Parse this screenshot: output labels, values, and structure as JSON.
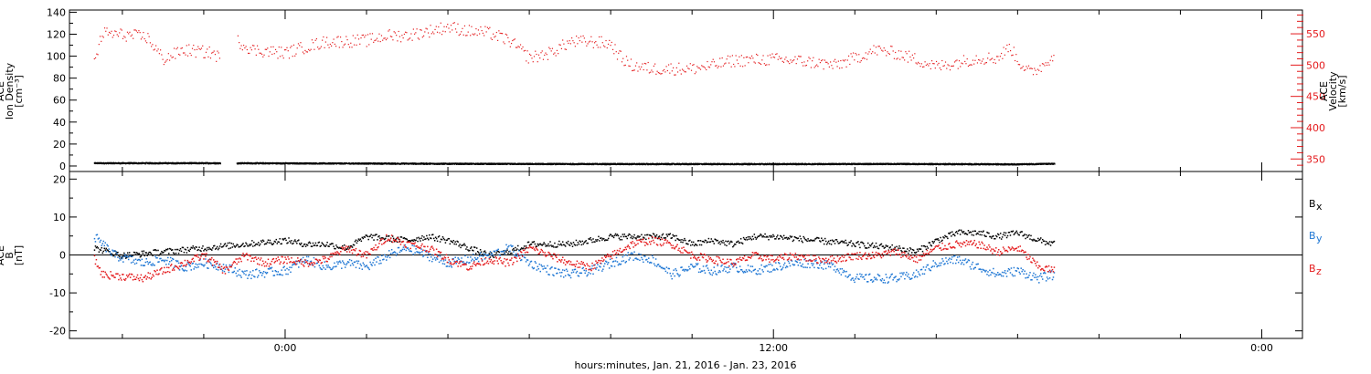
{
  "xlabel": "hours:minutes, Jan. 21, 2016 - Jan. 23, 2016",
  "colors": {
    "black": "#000000",
    "red": "#e41a1c",
    "blue": "#1f77d4"
  },
  "chart_data": [
    {
      "type": "scatter",
      "panel": "top",
      "ylabel_left": [
        "ACE",
        "Ion Density",
        "[cm⁻³]"
      ],
      "ylabel_right": [
        "ACE",
        "Velocity",
        "[km/s]"
      ],
      "ylim_left": [
        -5,
        142
      ],
      "yticks_left": [
        0,
        20,
        40,
        60,
        80,
        100,
        120,
        140
      ],
      "ylim_right": [
        330,
        588
      ],
      "yticks_right": [
        350,
        400,
        450,
        500,
        550
      ],
      "xticks": [
        {
          "hour": 0,
          "label": "0:00"
        },
        {
          "hour": 12,
          "label": "12:00"
        },
        {
          "hour": 24,
          "label": "0:00"
        }
      ],
      "xlim_hours": [
        -5.3,
        25.0
      ],
      "data_end_hour": 18.9,
      "gap_hours": [
        -1.6,
        -1.2
      ],
      "series": [
        {
          "axis": "left",
          "color": "black",
          "noise": 0.6,
          "points": [
            [
              -4.7,
              3
            ],
            [
              -3.0,
              3
            ],
            [
              -1.6,
              3
            ],
            [
              -1.2,
              3
            ],
            [
              3,
              2.6
            ],
            [
              6,
              2.3
            ],
            [
              9,
              2.2
            ],
            [
              12,
              2.2
            ],
            [
              15,
              2.3
            ],
            [
              18,
              2.0
            ],
            [
              18.9,
              2.5
            ]
          ]
        },
        {
          "axis": "right",
          "color": "red",
          "noise": 10,
          "points": [
            [
              -4.7,
              505
            ],
            [
              -4.5,
              552
            ],
            [
              -3.8,
              548
            ],
            [
              -3.4,
              545
            ],
            [
              -3.0,
              510
            ],
            [
              -2.5,
              525
            ],
            [
              -1.8,
              520
            ],
            [
              -1.6,
              512
            ],
            [
              -1.2,
              540
            ],
            [
              -0.8,
              525
            ],
            [
              0,
              520
            ],
            [
              0.5,
              530
            ],
            [
              1,
              538
            ],
            [
              2,
              540
            ],
            [
              2.5,
              548
            ],
            [
              3,
              548
            ],
            [
              4,
              562
            ],
            [
              4.5,
              555
            ],
            [
              5,
              552
            ],
            [
              5.5,
              540
            ],
            [
              6,
              512
            ],
            [
              6.5,
              520
            ],
            [
              7,
              538
            ],
            [
              7.5,
              538
            ],
            [
              8,
              535
            ],
            [
              8.2,
              515
            ],
            [
              8.5,
              500
            ],
            [
              9,
              495
            ],
            [
              10,
              495
            ],
            [
              10.5,
              500
            ],
            [
              11,
              508
            ],
            [
              12,
              510
            ],
            [
              12.5,
              508
            ],
            [
              13,
              505
            ],
            [
              13.5,
              500
            ],
            [
              14,
              512
            ],
            [
              14.5,
              525
            ],
            [
              15,
              520
            ],
            [
              15.5,
              510
            ],
            [
              16,
              498
            ],
            [
              16.5,
              505
            ],
            [
              17,
              512
            ],
            [
              17.5,
              512
            ],
            [
              17.8,
              530
            ],
            [
              18,
              508
            ],
            [
              18.3,
              488
            ],
            [
              18.6,
              500
            ],
            [
              18.9,
              520
            ]
          ]
        }
      ]
    },
    {
      "type": "scatter",
      "panel": "bottom",
      "ylabel_left": [
        "ACE",
        "B",
        "[nT]"
      ],
      "ylim": [
        -22,
        22
      ],
      "yticks": [
        -20,
        -10,
        0,
        10,
        20
      ],
      "zero_line": true,
      "legend": [
        {
          "label": "B",
          "sub": "x",
          "color": "black"
        },
        {
          "label": "B",
          "sub": "y",
          "color": "blue"
        },
        {
          "label": "B",
          "sub": "z",
          "color": "red"
        }
      ],
      "series": [
        {
          "name": "Bx",
          "color": "black",
          "noise": 0.8,
          "points": [
            [
              -4.7,
              2
            ],
            [
              -4.0,
              0
            ],
            [
              -3.0,
              1
            ],
            [
              -2.0,
              2
            ],
            [
              -1.0,
              3
            ],
            [
              0,
              4
            ],
            [
              0.5,
              3
            ],
            [
              1,
              3
            ],
            [
              1.5,
              2
            ],
            [
              2,
              5
            ],
            [
              3,
              4
            ],
            [
              3.5,
              5
            ],
            [
              4,
              4
            ],
            [
              4.5,
              2
            ],
            [
              5,
              0
            ],
            [
              5.5,
              1
            ],
            [
              6,
              3
            ],
            [
              7,
              3
            ],
            [
              8,
              5
            ],
            [
              9,
              5
            ],
            [
              9.5,
              5
            ],
            [
              10,
              3
            ],
            [
              10.5,
              4
            ],
            [
              11,
              3
            ],
            [
              11.5,
              5
            ],
            [
              12,
              5
            ],
            [
              13,
              4
            ],
            [
              14,
              3
            ],
            [
              15,
              2
            ],
            [
              15.5,
              1
            ],
            [
              16,
              4
            ],
            [
              16.5,
              6
            ],
            [
              17,
              6
            ],
            [
              17.5,
              5
            ],
            [
              18,
              6
            ],
            [
              18.5,
              4
            ],
            [
              18.9,
              3
            ]
          ]
        },
        {
          "name": "By",
          "color": "blue",
          "noise": 1.2,
          "points": [
            [
              -4.7,
              5
            ],
            [
              -4.2,
              0
            ],
            [
              -3.5,
              -2
            ],
            [
              -3.0,
              -1
            ],
            [
              -2.5,
              -3
            ],
            [
              -2,
              -2
            ],
            [
              -1.5,
              -3
            ],
            [
              -1,
              -5
            ],
            [
              0,
              -4
            ],
            [
              0.5,
              -1
            ],
            [
              1,
              -3
            ],
            [
              1.5,
              -2
            ],
            [
              2,
              -3
            ],
            [
              2.5,
              0
            ],
            [
              3,
              2
            ],
            [
              3.5,
              0
            ],
            [
              4,
              -2
            ],
            [
              4.5,
              -1
            ],
            [
              5,
              0
            ],
            [
              5.5,
              2
            ],
            [
              6,
              -2
            ],
            [
              6.5,
              -4
            ],
            [
              7,
              -5
            ],
            [
              7.5,
              -4
            ],
            [
              8,
              -2
            ],
            [
              8.5,
              0
            ],
            [
              9,
              -1
            ],
            [
              9.5,
              -5
            ],
            [
              10,
              -3
            ],
            [
              10.5,
              -4
            ],
            [
              11,
              -3
            ],
            [
              11.5,
              -4
            ],
            [
              12,
              -3
            ],
            [
              12.5,
              -2
            ],
            [
              13,
              -2
            ],
            [
              13.5,
              -3
            ],
            [
              14,
              -6
            ],
            [
              15,
              -6
            ],
            [
              15.5,
              -5
            ],
            [
              16,
              -2
            ],
            [
              16.5,
              -1
            ],
            [
              17,
              -3
            ],
            [
              17.5,
              -5
            ],
            [
              18,
              -4
            ],
            [
              18.5,
              -6
            ],
            [
              18.9,
              -5
            ]
          ]
        },
        {
          "name": "Bz",
          "color": "red",
          "noise": 1.0,
          "points": [
            [
              -4.7,
              -1
            ],
            [
              -4.5,
              -5
            ],
            [
              -3.5,
              -6
            ],
            [
              -3.0,
              -4
            ],
            [
              -2.5,
              -2
            ],
            [
              -2,
              0
            ],
            [
              -1.5,
              -4
            ],
            [
              -1,
              0
            ],
            [
              -0.5,
              -2
            ],
            [
              0,
              -1
            ],
            [
              0.5,
              -2
            ],
            [
              1,
              -1
            ],
            [
              1.5,
              2
            ],
            [
              2,
              0
            ],
            [
              2.5,
              5
            ],
            [
              3,
              3
            ],
            [
              3.5,
              2
            ],
            [
              4,
              -1
            ],
            [
              4.5,
              -3
            ],
            [
              5,
              -1
            ],
            [
              5.5,
              -2
            ],
            [
              6,
              2
            ],
            [
              6.5,
              0
            ],
            [
              7,
              -2
            ],
            [
              7.5,
              -3
            ],
            [
              8,
              0
            ],
            [
              8.5,
              3
            ],
            [
              9,
              4
            ],
            [
              9.5,
              3
            ],
            [
              10,
              0
            ],
            [
              10.5,
              -1
            ],
            [
              11,
              -2
            ],
            [
              11.5,
              0
            ],
            [
              12,
              -1
            ],
            [
              12.5,
              0
            ],
            [
              13,
              -1
            ],
            [
              13.5,
              -1
            ],
            [
              14,
              0
            ],
            [
              14.5,
              0
            ],
            [
              15,
              1
            ],
            [
              15.5,
              -1
            ],
            [
              16,
              2
            ],
            [
              16.5,
              3
            ],
            [
              17,
              3
            ],
            [
              17.5,
              1
            ],
            [
              18,
              2
            ],
            [
              18.5,
              -3
            ],
            [
              18.9,
              -4
            ]
          ]
        }
      ]
    }
  ]
}
